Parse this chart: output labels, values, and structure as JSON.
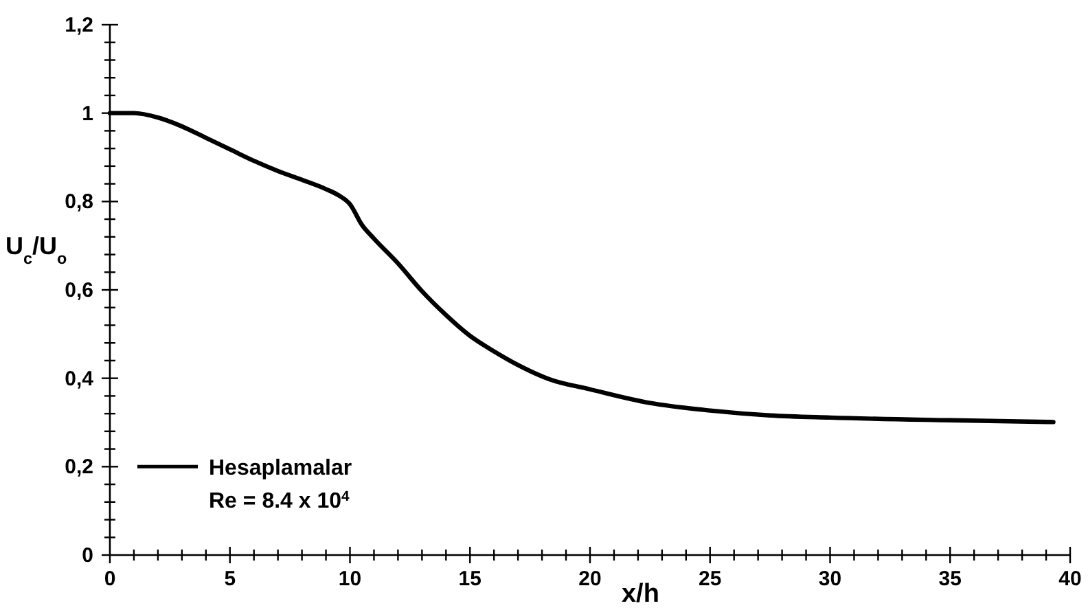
{
  "chart_data": {
    "type": "line",
    "xlabel": "x/h",
    "ylabel": "U$_{c}$/U$_{o}$",
    "x": [
      0,
      1,
      2,
      3,
      4,
      5,
      6,
      7,
      8,
      9,
      9.5,
      10,
      10.5,
      11,
      12,
      13,
      14,
      15,
      16,
      17,
      18.3,
      20,
      22.5,
      25,
      27.5,
      30,
      35,
      39.3
    ],
    "series": [
      {
        "name": "Hesaplamalar",
        "color": "#000000",
        "values": [
          1.0,
          1.0,
          0.99,
          0.97,
          0.944,
          0.918,
          0.892,
          0.869,
          0.849,
          0.828,
          0.815,
          0.794,
          0.747,
          0.716,
          0.66,
          0.597,
          0.543,
          0.496,
          0.461,
          0.43,
          0.398,
          0.375,
          0.344,
          0.327,
          0.316,
          0.311,
          0.305,
          0.301
        ]
      }
    ],
    "annotations": [
      "Re = 8.4 x 10$^{4}$"
    ],
    "xlim": [
      0,
      40
    ],
    "xticks": [
      0,
      {
        "value": 1,
        "label": null
      },
      {
        "value": 2,
        "label": null
      },
      {
        "value": 3,
        "label": null
      },
      {
        "value": 4,
        "label": null
      },
      5,
      {
        "value": 6,
        "label": null
      },
      {
        "value": 7,
        "label": null
      },
      {
        "value": 8,
        "label": null
      },
      {
        "value": 9,
        "label": null
      },
      10,
      {
        "value": 11,
        "label": null
      },
      {
        "value": 12,
        "label": null
      },
      {
        "value": 13,
        "label": null
      },
      {
        "value": 14,
        "label": null
      },
      15,
      {
        "value": 16,
        "label": null
      },
      {
        "value": 17,
        "label": null
      },
      {
        "value": 18,
        "label": null
      },
      {
        "value": 19,
        "label": null
      },
      20,
      {
        "value": 21,
        "label": null
      },
      {
        "value": 22,
        "label": null
      },
      {
        "value": 23,
        "label": null
      },
      {
        "value": 24,
        "label": null
      },
      25,
      {
        "value": 26,
        "label": null
      },
      {
        "value": 27,
        "label": null
      },
      {
        "value": 28,
        "label": null
      },
      {
        "value": 29,
        "label": null
      },
      30,
      {
        "value": 31,
        "label": null
      },
      {
        "value": 32,
        "label": null
      },
      {
        "value": 33,
        "label": null
      },
      {
        "value": 34,
        "label": null
      },
      35,
      {
        "value": 36,
        "label": null
      },
      {
        "value": 37,
        "label": null
      },
      {
        "value": 38,
        "label": null
      },
      {
        "value": 39,
        "label": null
      },
      40
    ],
    "ylim": [
      0,
      1.2
    ],
    "yticks": [
      0,
      {
        "value": 0.04,
        "label": null
      },
      {
        "value": 0.08,
        "label": null
      },
      {
        "value": 0.12,
        "label": null
      },
      {
        "value": 0.16,
        "label": null
      },
      {
        "value": 0.2,
        "label": "0,2"
      },
      {
        "value": 0.24,
        "label": null
      },
      {
        "value": 0.28,
        "label": null
      },
      {
        "value": 0.32,
        "label": null
      },
      {
        "value": 0.36,
        "label": null
      },
      {
        "value": 0.4,
        "label": "0,4"
      },
      {
        "value": 0.44,
        "label": null
      },
      {
        "value": 0.48,
        "label": null
      },
      {
        "value": 0.52,
        "label": null
      },
      {
        "value": 0.56,
        "label": null
      },
      {
        "value": 0.6,
        "label": "0,6"
      },
      {
        "value": 0.64,
        "label": null
      },
      {
        "value": 0.68,
        "label": null
      },
      {
        "value": 0.72,
        "label": null
      },
      {
        "value": 0.76,
        "label": null
      },
      {
        "value": 0.8,
        "label": "0,8"
      },
      {
        "value": 0.84,
        "label": null
      },
      {
        "value": 0.88,
        "label": null
      },
      {
        "value": 0.92,
        "label": null
      },
      {
        "value": 0.96,
        "label": null
      },
      1,
      {
        "value": 1.04,
        "label": null
      },
      {
        "value": 1.08,
        "label": null
      },
      {
        "value": 1.12,
        "label": null
      },
      {
        "value": 1.16,
        "label": null
      },
      {
        "value": 1.2,
        "label": "1,2"
      }
    ],
    "legend": "bottom left",
    "grid": false,
    "line_style": "solid"
  }
}
